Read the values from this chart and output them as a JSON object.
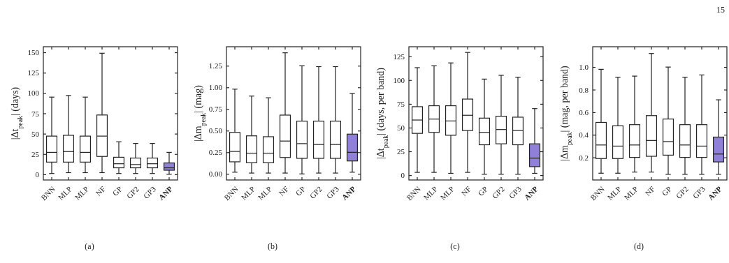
{
  "chart_data": [
    {
      "type": "box",
      "ylabel": "|Δt$_{peak}$| (days)",
      "categories": [
        "BNN",
        "MLP",
        "MLP",
        "NF",
        "GP",
        "GP2",
        "GP3",
        "ANP"
      ],
      "colors": [
        "#ffffff",
        "#ffffff",
        "#ffffff",
        "#ffffff",
        "#ffffff",
        "#ffffff",
        "#ffffff",
        "#9080d8"
      ],
      "ylim": [
        -7,
        157
      ],
      "yticks": [
        0,
        25,
        50,
        75,
        100,
        125,
        150
      ],
      "annotations": [
        "(a)"
      ],
      "boxes": [
        {
          "low": 1,
          "q1": 15,
          "median": 27,
          "q3": 47,
          "high": 95
        },
        {
          "low": 2,
          "q1": 15,
          "median": 28,
          "q3": 48,
          "high": 97
        },
        {
          "low": 2,
          "q1": 15,
          "median": 27,
          "q3": 47,
          "high": 95
        },
        {
          "low": 2,
          "q1": 22,
          "median": 47,
          "q3": 73,
          "high": 149
        },
        {
          "low": 1,
          "q1": 8,
          "median": 13,
          "q3": 21,
          "high": 40
        },
        {
          "low": 1,
          "q1": 8,
          "median": 12,
          "q3": 20,
          "high": 38
        },
        {
          "low": 1,
          "q1": 8,
          "median": 13,
          "q3": 20,
          "high": 38
        },
        {
          "low": 0,
          "q1": 5,
          "median": 8,
          "q3": 14,
          "high": 27
        }
      ]
    },
    {
      "type": "box",
      "ylabel": "|Δm$_{peak}$| (mag)",
      "categories": [
        "BNN",
        "MLP",
        "MLP",
        "NF",
        "GP",
        "GP2",
        "GP3",
        "ANP"
      ],
      "colors": [
        "#ffffff",
        "#ffffff",
        "#ffffff",
        "#ffffff",
        "#ffffff",
        "#ffffff",
        "#ffffff",
        "#9080d8"
      ],
      "ylim": [
        -0.07,
        1.47
      ],
      "yticks": [
        {
          "value": 0,
          "label": "0.00"
        },
        0.25,
        {
          "value": 0.5,
          "label": "0.50"
        },
        0.75,
        {
          "value": 1,
          "label": "1.00"
        },
        1.25
      ],
      "annotations": [
        "(b)"
      ],
      "boxes": [
        {
          "low": 0.02,
          "q1": 0.14,
          "median": 0.26,
          "q3": 0.48,
          "high": 0.98
        },
        {
          "low": 0.01,
          "q1": 0.13,
          "median": 0.24,
          "q3": 0.44,
          "high": 0.9
        },
        {
          "low": 0.01,
          "q1": 0.13,
          "median": 0.24,
          "q3": 0.43,
          "high": 0.88
        },
        {
          "low": 0.01,
          "q1": 0.19,
          "median": 0.38,
          "q3": 0.68,
          "high": 1.4
        },
        {
          "low": 0.0,
          "q1": 0.18,
          "median": 0.35,
          "q3": 0.61,
          "high": 1.25
        },
        {
          "low": 0.01,
          "q1": 0.18,
          "median": 0.34,
          "q3": 0.61,
          "high": 1.24
        },
        {
          "low": 0.01,
          "q1": 0.18,
          "median": 0.34,
          "q3": 0.61,
          "high": 1.24
        },
        {
          "low": 0.02,
          "q1": 0.15,
          "median": 0.25,
          "q3": 0.46,
          "high": 0.93
        }
      ]
    },
    {
      "type": "box",
      "ylabel": "|Δt$_{peak}$| (days, per band)",
      "categories": [
        "BNN",
        "MLP",
        "MLP",
        "NF",
        "GP",
        "GP2",
        "GP3",
        "ANP"
      ],
      "colors": [
        "#ffffff",
        "#ffffff",
        "#ffffff",
        "#ffffff",
        "#ffffff",
        "#ffffff",
        "#ffffff",
        "#9080d8"
      ],
      "ylim": [
        -5,
        135
      ],
      "yticks": [
        0,
        25,
        50,
        75,
        100,
        125
      ],
      "annotations": [
        "(c)"
      ],
      "boxes": [
        {
          "low": 3,
          "q1": 44,
          "median": 58,
          "q3": 72,
          "high": 113
        },
        {
          "low": 3,
          "q1": 45,
          "median": 59,
          "q3": 73,
          "high": 115
        },
        {
          "low": 2,
          "q1": 42,
          "median": 57,
          "q3": 73,
          "high": 118
        },
        {
          "low": 3,
          "q1": 47,
          "median": 63,
          "q3": 80,
          "high": 129
        },
        {
          "low": 1,
          "q1": 32,
          "median": 45,
          "q3": 60,
          "high": 101
        },
        {
          "low": 1,
          "q1": 33,
          "median": 48,
          "q3": 62,
          "high": 105
        },
        {
          "low": 1,
          "q1": 32,
          "median": 47,
          "q3": 61,
          "high": 103
        },
        {
          "low": 2,
          "q1": 9,
          "median": 18,
          "q3": 33,
          "high": 70
        }
      ]
    },
    {
      "type": "box",
      "ylabel": "|Δm$_{peak}$| (mag, per band)",
      "categories": [
        "BNN",
        "MLP",
        "MLP",
        "NF",
        "GP",
        "GP2",
        "GP3",
        "ANP"
      ],
      "colors": [
        "#ffffff",
        "#ffffff",
        "#ffffff",
        "#ffffff",
        "#ffffff",
        "#ffffff",
        "#ffffff",
        "#9080d8"
      ],
      "ylim": [
        0,
        1.18
      ],
      "yticks": [
        0.2,
        0.4,
        0.6,
        0.8,
        {
          "value": 1,
          "label": "1.0"
        }
      ],
      "annotations": [
        "(d)",
        "15"
      ],
      "boxes": [
        {
          "low": 0.06,
          "q1": 0.19,
          "median": 0.31,
          "q3": 0.51,
          "high": 0.98
        },
        {
          "low": 0.06,
          "q1": 0.19,
          "median": 0.3,
          "q3": 0.48,
          "high": 0.91
        },
        {
          "low": 0.07,
          "q1": 0.2,
          "median": 0.31,
          "q3": 0.49,
          "high": 0.92
        },
        {
          "low": 0.07,
          "q1": 0.21,
          "median": 0.35,
          "q3": 0.57,
          "high": 1.12
        },
        {
          "low": 0.05,
          "q1": 0.22,
          "median": 0.34,
          "q3": 0.54,
          "high": 1.0
        },
        {
          "low": 0.05,
          "q1": 0.2,
          "median": 0.31,
          "q3": 0.49,
          "high": 0.91
        },
        {
          "low": 0.05,
          "q1": 0.2,
          "median": 0.3,
          "q3": 0.49,
          "high": 0.93
        },
        {
          "low": 0.05,
          "q1": 0.16,
          "median": 0.23,
          "q3": 0.38,
          "high": 0.71
        }
      ]
    }
  ]
}
